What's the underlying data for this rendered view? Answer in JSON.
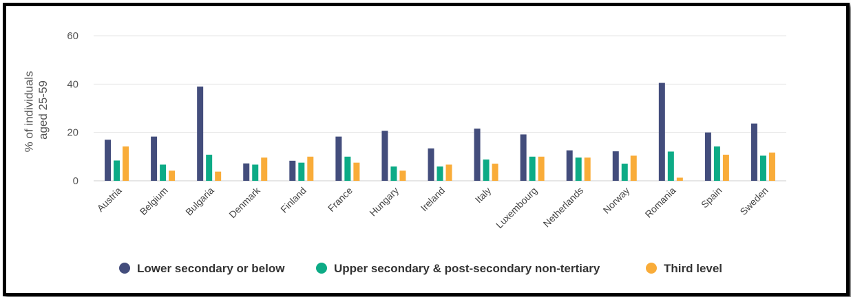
{
  "chart_data": {
    "type": "bar",
    "title": "",
    "xlabel": "",
    "ylabel": [
      "% of individuals",
      "aged 25-59"
    ],
    "ylim": [
      0,
      60
    ],
    "yticks": [
      "0",
      "20",
      "40",
      "60"
    ],
    "grid": true,
    "legend_position": "bottom",
    "categories": [
      "Austria",
      "Belgium",
      "Bulgaria",
      "Denmark",
      "Finland",
      "France",
      "Hungary",
      "Ireland",
      "Italy",
      "Luxembourg",
      "Netherlands",
      "Norway",
      "Romania",
      "Spain",
      "Sweden"
    ],
    "series": [
      {
        "name": "Lower secondary or below",
        "color": "#434d7c",
        "values": [
          17,
          18.3,
          39,
          7.2,
          8.3,
          18.3,
          20.7,
          13.4,
          21.6,
          19.2,
          12.6,
          12.2,
          40.5,
          20,
          23.7
        ]
      },
      {
        "name": "Upper secondary & post-secondary non-tertiary",
        "color": "#0dab86",
        "values": [
          8.4,
          6.7,
          10.8,
          6.7,
          7.5,
          10,
          5.9,
          5.9,
          8.8,
          10,
          9.6,
          7.1,
          12.1,
          14.2,
          10.4
        ]
      },
      {
        "name": "Third level",
        "color": "#f9ac39",
        "values": [
          14.2,
          4.2,
          3.8,
          9.6,
          10,
          7.5,
          4.2,
          6.7,
          7.1,
          10,
          9.6,
          10.4,
          1.3,
          10.8,
          11.7
        ]
      }
    ]
  }
}
